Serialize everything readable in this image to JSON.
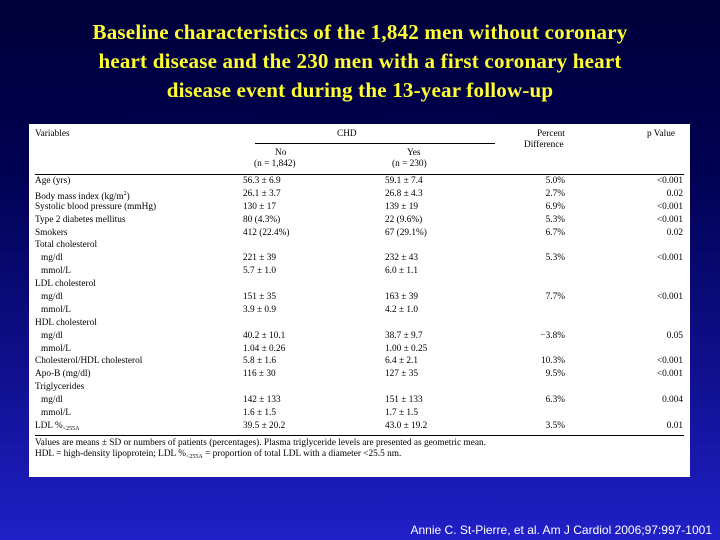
{
  "slide": {
    "title_lines": [
      "Baseline characteristics of the 1,842 men without coronary",
      "heart disease and the 230 men with a first coronary heart",
      "disease event during the 13-year follow-up"
    ],
    "citation": "Annie C. St-Pierre, et al. Am J Cardiol 2006;97:997-1001"
  },
  "table": {
    "headers": {
      "variables": "Variables",
      "chd": "CHD",
      "percent_line1": "Percent",
      "percent_line2": "Difference",
      "p_value": "p Value",
      "no_line1": "No",
      "no_line2": "(n = 1,842)",
      "yes_line1": "Yes",
      "yes_line2": "(n = 230)"
    },
    "rows": [
      {
        "var": "Age (yrs)",
        "no": "56.3 ± 6.9",
        "yes": "59.1 ± 7.4",
        "pct": "5.0%",
        "p": "<0.001"
      },
      {
        "var": "Body mass index (kg/m",
        "sup": "2",
        "var_after": ")",
        "no": "26.1 ± 3.7",
        "yes": "26.8 ± 4.3",
        "pct": "2.7%",
        "p": "0.02"
      },
      {
        "var": "Systolic blood pressure (mmHg)",
        "no": "130 ± 17",
        "yes": "139 ± 19",
        "pct": "6.9%",
        "p": "<0.001"
      },
      {
        "var": "Type 2 diabetes mellitus",
        "no": "80 (4.3%)",
        "yes": "22 (9.6%)",
        "pct": "5.3%",
        "p": "<0.001"
      },
      {
        "var": "Smokers",
        "no": "412 (22.4%)",
        "yes": "67 (29.1%)",
        "pct": "6.7%",
        "p": "0.02"
      },
      {
        "var": "Total cholesterol",
        "no": "",
        "yes": "",
        "pct": "",
        "p": ""
      },
      {
        "var": "mg/dl",
        "indent": true,
        "no": "221 ± 39",
        "yes": "232 ± 43",
        "pct": "5.3%",
        "p": "<0.001"
      },
      {
        "var": "mmol/L",
        "indent": true,
        "no": "5.7 ± 1.0",
        "yes": "6.0 ± 1.1",
        "pct": "",
        "p": ""
      },
      {
        "var": "LDL cholesterol",
        "no": "",
        "yes": "",
        "pct": "",
        "p": ""
      },
      {
        "var": "mg/dl",
        "indent": true,
        "no": "151 ± 35",
        "yes": "163 ± 39",
        "pct": "7.7%",
        "p": "<0.001"
      },
      {
        "var": "mmol/L",
        "indent": true,
        "no": "3.9 ± 0.9",
        "yes": "4.2 ± 1.0",
        "pct": "",
        "p": ""
      },
      {
        "var": "HDL cholesterol",
        "no": "",
        "yes": "",
        "pct": "",
        "p": ""
      },
      {
        "var": "mg/dl",
        "indent": true,
        "no": "40.2 ± 10.1",
        "yes": "38.7 ± 9.7",
        "pct": "−3.8%",
        "p": "0.05"
      },
      {
        "var": "mmol/L",
        "indent": true,
        "no": "1.04 ± 0.26",
        "yes": "1.00 ± 0.25",
        "pct": "",
        "p": ""
      },
      {
        "var": "Cholesterol/HDL cholesterol",
        "no": "5.8 ± 1.6",
        "yes": "6.4 ± 2.1",
        "pct": "10.3%",
        "p": "<0.001"
      },
      {
        "var": "Apo-B (mg/dl)",
        "no": "116 ± 30",
        "yes": "127 ± 35",
        "pct": "9.5%",
        "p": "<0.001"
      },
      {
        "var": "Triglycerides",
        "no": "",
        "yes": "",
        "pct": "",
        "p": ""
      },
      {
        "var": "mg/dl",
        "indent": true,
        "no": "142 ± 133",
        "yes": "151 ± 133",
        "pct": "6.3%",
        "p": "0.004"
      },
      {
        "var": "mmol/L",
        "indent": true,
        "no": "1.6 ± 1.5",
        "yes": "1.7 ± 1.5",
        "pct": "",
        "p": ""
      },
      {
        "var": "LDL %",
        "sub": "<255A",
        "no": "39.5 ± 20.2",
        "yes": "43.0 ± 19.2",
        "pct": "3.5%",
        "p": "0.01"
      }
    ],
    "footnote_line1": "Values are means ± SD or numbers of patients (percentages). Plasma triglyceride levels are presented as geometric mean.",
    "footnote_line2_a": "HDL = high-density lipoprotein; LDL %",
    "footnote_line2_sub": "<255A",
    "footnote_line2_b": " = proportion of total LDL with a diameter <25.5 nm."
  }
}
